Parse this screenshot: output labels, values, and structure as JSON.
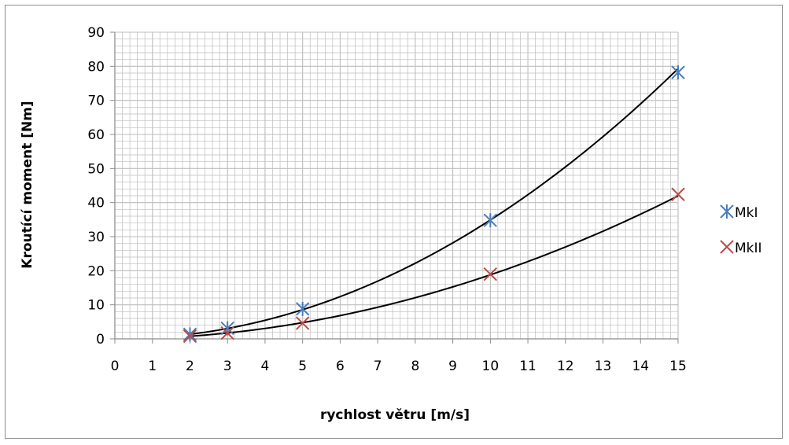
{
  "chart_data": {
    "type": "scatter",
    "title": "",
    "xlabel": "rychlost větru [m/s]",
    "ylabel": "Kroutící moment [Nm]",
    "xlim": [
      0,
      15
    ],
    "ylim": [
      0,
      90
    ],
    "x_ticks": [
      "0",
      "1",
      "2",
      "3",
      "4",
      "5",
      "6",
      "7",
      "8",
      "9",
      "10",
      "11",
      "12",
      "13",
      "14",
      "15"
    ],
    "y_ticks": [
      "0",
      "10",
      "20",
      "30",
      "40",
      "50",
      "60",
      "70",
      "80",
      "90"
    ],
    "grid": true,
    "legend_position": "right",
    "trendline": "power",
    "series": [
      {
        "name": "MkI",
        "color": "#4a7ebb",
        "marker": "asterisk",
        "x": [
          2,
          3,
          5,
          10,
          15
        ],
        "y": [
          1.3,
          3.1,
          8.8,
          34.8,
          78.2
        ],
        "trend_color": "#000000"
      },
      {
        "name": "MkII",
        "color": "#be4b48",
        "marker": "x",
        "x": [
          2,
          3,
          5,
          10,
          15
        ],
        "y": [
          0.8,
          1.7,
          4.6,
          19.0,
          42.4
        ],
        "trend_color": "#000000"
      }
    ]
  }
}
